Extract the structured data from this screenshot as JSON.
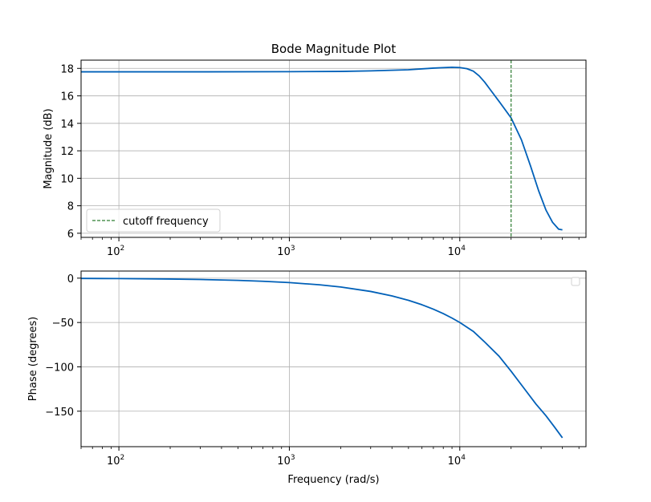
{
  "chart_data": [
    {
      "type": "line",
      "title": "Bode Magnitude Plot",
      "xlabel": "",
      "ylabel": "Magnitude (dB)",
      "xscale": "log",
      "xlim": [
        60,
        55000
      ],
      "ylim": [
        5.7,
        18.6
      ],
      "xticks": [
        {
          "value": 100,
          "base": "10",
          "exp": "2"
        },
        {
          "value": 1000,
          "base": "10",
          "exp": "3"
        },
        {
          "value": 10000,
          "base": "10",
          "exp": "4"
        }
      ],
      "yticks": [
        6,
        8,
        10,
        12,
        14,
        16,
        18
      ],
      "grid": true,
      "series": [
        {
          "color": "#0060b8",
          "x": [
            60,
            100,
            300,
            1000,
            2000,
            3000,
            5000,
            7000,
            9000,
            10000,
            11000,
            12000,
            13000,
            14000,
            15000,
            17000,
            20000,
            23000,
            26000,
            29000,
            32000,
            35000,
            38000,
            40000
          ],
          "y": [
            17.75,
            17.75,
            17.75,
            17.76,
            17.78,
            17.82,
            17.9,
            18.02,
            18.08,
            18.06,
            17.98,
            17.8,
            17.45,
            17.0,
            16.5,
            15.6,
            14.4,
            12.8,
            10.9,
            9.1,
            7.7,
            6.8,
            6.3,
            6.25
          ]
        }
      ],
      "vline": {
        "x": 20000,
        "color": "#2e7d32",
        "label": "cutoff frequency"
      },
      "legend": {
        "position": "lower-left",
        "entries": [
          "cutoff frequency"
        ]
      }
    },
    {
      "type": "line",
      "title": "",
      "xlabel": "Frequency (rad/s)",
      "ylabel": "Phase (degrees)",
      "xscale": "log",
      "xlim": [
        60,
        55000
      ],
      "ylim": [
        -190,
        8
      ],
      "xticks": [
        {
          "value": 100,
          "base": "10",
          "exp": "2"
        },
        {
          "value": 1000,
          "base": "10",
          "exp": "3"
        },
        {
          "value": 10000,
          "base": "10",
          "exp": "4"
        }
      ],
      "yticks": [
        0,
        -50,
        -100,
        -150
      ],
      "grid": true,
      "series": [
        {
          "color": "#0060b8",
          "x": [
            60,
            100,
            200,
            300,
            500,
            700,
            1000,
            1500,
            2000,
            3000,
            4000,
            5000,
            6000,
            7000,
            8000,
            9000,
            10000,
            12000,
            14000,
            17000,
            20000,
            24000,
            28000,
            32000,
            36000,
            40000
          ],
          "y": [
            -0.3,
            -0.5,
            -1.0,
            -1.5,
            -2.5,
            -3.5,
            -5.0,
            -7.5,
            -10,
            -15,
            -20,
            -25,
            -30,
            -35,
            -40,
            -45,
            -50,
            -60,
            -72,
            -88,
            -105,
            -125,
            -142,
            -155,
            -168,
            -180
          ]
        }
      ],
      "legend": {
        "position": "upper-right",
        "entries": []
      }
    }
  ]
}
